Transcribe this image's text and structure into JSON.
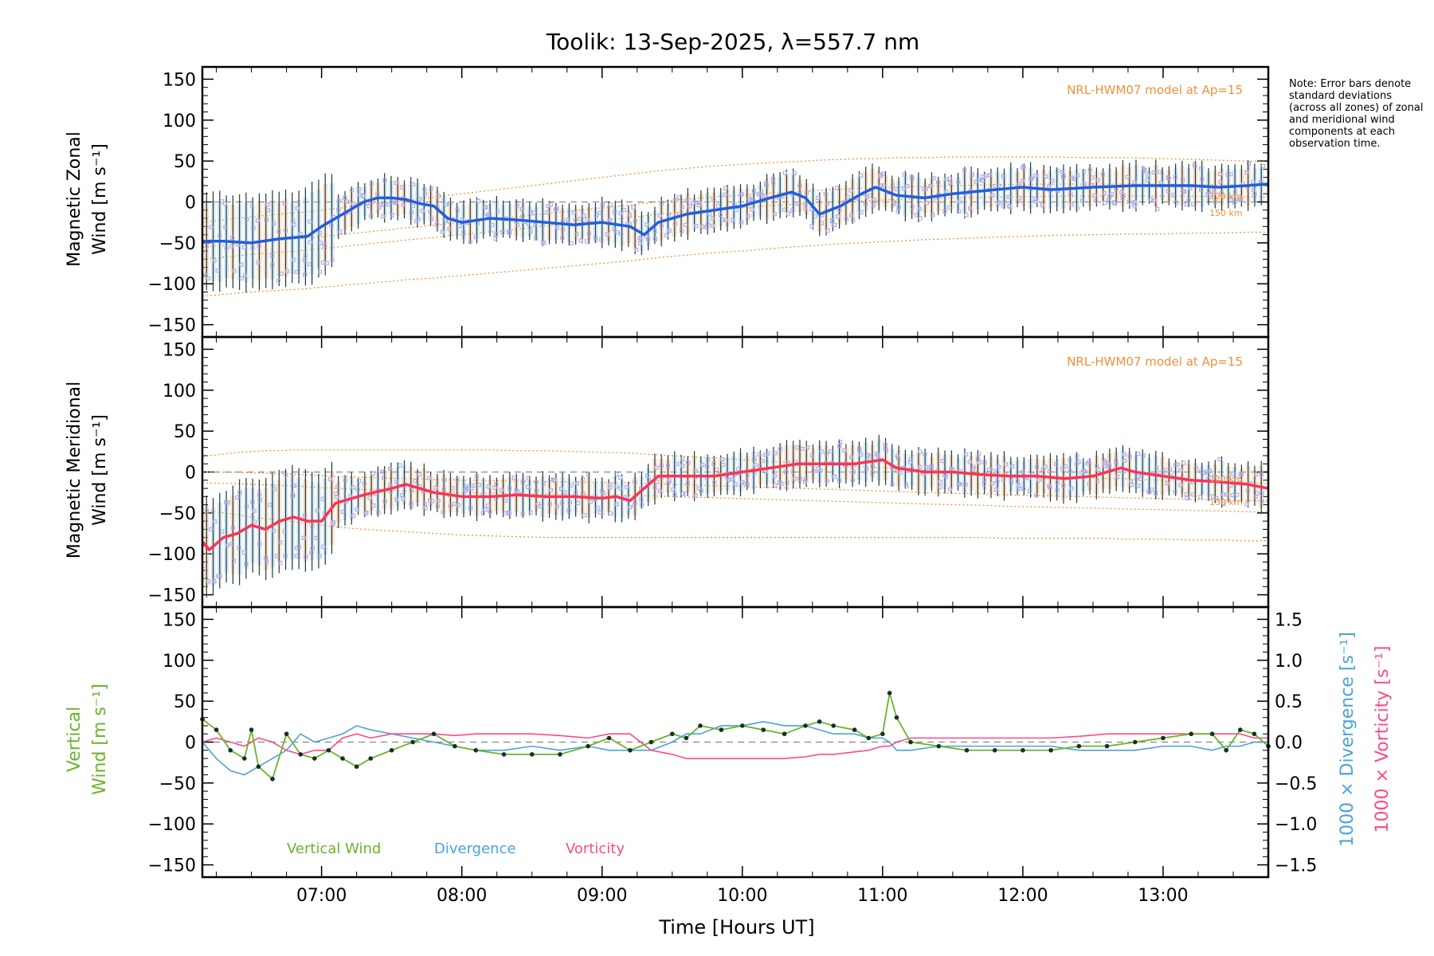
{
  "title": "Toolik: 13-Sep-2025, λ=557.7 nm",
  "note": "Note: Error bars denote standard deviations (across all zones) of zonal and meridional wind components at each observation time.",
  "colors": {
    "axes": "#000000",
    "zonal": "#1f5fe0",
    "meridional": "#ff3355",
    "vertical": "#6ab42a",
    "divergence": "#4aa3d8",
    "vorticity": "#ff4a86",
    "model": "#f0913a",
    "errorbar": "#1e3a32",
    "zone_marker": "#a9a6e3",
    "shade_tan": "#f4c9a8",
    "shade_blue": "#b9d9f0"
  },
  "xlabel": "Time [Hours UT]",
  "xlim": [
    6.15,
    13.75
  ],
  "xticks": [
    {
      "value": 7,
      "label": "07:00"
    },
    {
      "value": 8,
      "label": "08:00"
    },
    {
      "value": 9,
      "label": "09:00"
    },
    {
      "value": 10,
      "label": "10:00"
    },
    {
      "value": 11,
      "label": "11:00"
    },
    {
      "value": 12,
      "label": "12:00"
    },
    {
      "value": 13,
      "label": "13:00"
    }
  ],
  "yticks": [
    150,
    100,
    50,
    0,
    -50,
    -100,
    -150
  ],
  "yticks_right": [
    {
      "value": 1.5,
      "label": "1.5"
    },
    {
      "value": 1.0,
      "label": "1.0"
    },
    {
      "value": 0.5,
      "label": "0.5"
    },
    {
      "value": 0.0,
      "label": "0.0"
    },
    {
      "value": -0.5,
      "label": "−0.5"
    },
    {
      "value": -1.0,
      "label": "−1.0"
    },
    {
      "value": -1.5,
      "label": "−1.5"
    }
  ],
  "panels": {
    "zonal": {
      "ylabel_line1": "Magnetic Zonal",
      "ylabel_line2": "Wind [m s⁻¹]",
      "model_label": "NRL-HWM07 model at Ap=15",
      "alt_label_1": "120 km",
      "alt_label_2": "150 km"
    },
    "meridional": {
      "ylabel_line1": "Magnetic Meridional",
      "ylabel_line2": "Wind [m s⁻¹]",
      "model_label": "NRL-HWM07 model at Ap=15",
      "alt_label_1": "120 km",
      "alt_label_2": "130 km"
    },
    "vertical": {
      "ylabel_line1": "Vertical",
      "ylabel_line2": "Wind [m s⁻¹]",
      "ylabel_right_div": "1000 × Divergence [s⁻¹]",
      "ylabel_right_vort": "1000 × Vorticity [s⁻¹]",
      "legend": [
        "Vertical Wind",
        "Divergence",
        "Vorticity"
      ]
    }
  },
  "chart_data": [
    {
      "type": "line",
      "panel": "zonal",
      "ylim": [
        -165,
        165
      ],
      "x": [
        6.15,
        6.3,
        6.5,
        6.7,
        6.9,
        7.0,
        7.1,
        7.2,
        7.3,
        7.4,
        7.5,
        7.6,
        7.7,
        7.8,
        7.9,
        8.0,
        8.2,
        8.4,
        8.6,
        8.8,
        9.0,
        9.2,
        9.3,
        9.4,
        9.6,
        9.8,
        10.0,
        10.2,
        10.35,
        10.45,
        10.55,
        10.7,
        10.85,
        10.95,
        11.1,
        11.3,
        11.5,
        11.8,
        12.0,
        12.2,
        12.5,
        12.8,
        13.0,
        13.2,
        13.4,
        13.6,
        13.75
      ],
      "series": [
        {
          "name": "Zonal wind",
          "values": [
            -48,
            -48,
            -50,
            -45,
            -42,
            -30,
            -20,
            -10,
            0,
            5,
            5,
            3,
            -2,
            -5,
            -20,
            -25,
            -20,
            -22,
            -25,
            -28,
            -25,
            -30,
            -40,
            -25,
            -15,
            -10,
            -5,
            5,
            12,
            5,
            -15,
            -5,
            10,
            18,
            8,
            5,
            10,
            15,
            18,
            15,
            18,
            20,
            20,
            20,
            18,
            20,
            22
          ]
        },
        {
          "name": "Model upper",
          "values": [
            -25,
            -22,
            -18,
            -15,
            -12,
            -10,
            -8,
            -6,
            -4,
            -2,
            0,
            2,
            4,
            6,
            8,
            10,
            14,
            18,
            22,
            26,
            30,
            34,
            36,
            38,
            41,
            44,
            46,
            48,
            49,
            50,
            51,
            52,
            53,
            53,
            54,
            54,
            55,
            55,
            55,
            55,
            54,
            54,
            53,
            52,
            51,
            50,
            49
          ]
        },
        {
          "name": "Model lower",
          "values": [
            -115,
            -113,
            -110,
            -108,
            -106,
            -104,
            -103,
            -101,
            -100,
            -98,
            -97,
            -95,
            -94,
            -93,
            -91,
            -90,
            -87,
            -84,
            -81,
            -78,
            -75,
            -72,
            -70,
            -68,
            -65,
            -62,
            -60,
            -57,
            -55,
            -54,
            -53,
            -51,
            -50,
            -49,
            -48,
            -46,
            -45,
            -43,
            -42,
            -41,
            -40,
            -39,
            -39,
            -38,
            -38,
            -37,
            -37
          ]
        }
      ]
    },
    {
      "type": "line",
      "panel": "meridional",
      "ylim": [
        -165,
        165
      ],
      "x": [
        6.15,
        6.2,
        6.3,
        6.4,
        6.5,
        6.6,
        6.7,
        6.8,
        6.9,
        7.0,
        7.1,
        7.3,
        7.5,
        7.6,
        7.8,
        8.0,
        8.2,
        8.4,
        8.6,
        8.8,
        9.0,
        9.1,
        9.2,
        9.3,
        9.4,
        9.6,
        9.8,
        10.0,
        10.2,
        10.4,
        10.6,
        10.8,
        11.0,
        11.1,
        11.3,
        11.5,
        11.7,
        11.9,
        12.1,
        12.3,
        12.5,
        12.6,
        12.7,
        12.8,
        13.0,
        13.2,
        13.4,
        13.6,
        13.75
      ],
      "series": [
        {
          "name": "Meridional wind",
          "values": [
            -85,
            -95,
            -80,
            -75,
            -65,
            -70,
            -60,
            -55,
            -60,
            -60,
            -38,
            -28,
            -20,
            -15,
            -25,
            -30,
            -30,
            -28,
            -30,
            -30,
            -32,
            -30,
            -35,
            -20,
            -5,
            -5,
            -5,
            0,
            5,
            10,
            10,
            10,
            15,
            5,
            0,
            0,
            -3,
            -5,
            -5,
            -8,
            -5,
            0,
            5,
            0,
            -5,
            -10,
            -12,
            -15,
            -20
          ]
        },
        {
          "name": "Model upper",
          "values": [
            18,
            20,
            22,
            24,
            25,
            26,
            26,
            27,
            27,
            27,
            27,
            27,
            27,
            27,
            27,
            27,
            27,
            26,
            26,
            25,
            24,
            24,
            23,
            22,
            21,
            19,
            17,
            15,
            13,
            11,
            9,
            7,
            5,
            4,
            2,
            0,
            -1,
            -3,
            -4,
            -6,
            -7,
            -8,
            -8,
            -9,
            -10,
            -11,
            -12,
            -13,
            -14
          ]
        },
        {
          "name": "Model lower",
          "values": [
            -45,
            -47,
            -50,
            -52,
            -55,
            -57,
            -59,
            -61,
            -63,
            -65,
            -67,
            -70,
            -72,
            -73,
            -75,
            -77,
            -78,
            -79,
            -80,
            -80,
            -80,
            -80,
            -80,
            -80,
            -80,
            -80,
            -80,
            -80,
            -80,
            -80,
            -80,
            -80,
            -80,
            -80,
            -80,
            -80,
            -80,
            -81,
            -81,
            -81,
            -81,
            -81,
            -82,
            -82,
            -82,
            -83,
            -83,
            -84,
            -84
          ]
        }
      ]
    },
    {
      "type": "line",
      "panel": "vertical",
      "ylim": [
        -165,
        165
      ],
      "ylim_right": [
        -1.65,
        1.65
      ],
      "x": [
        6.15,
        6.25,
        6.35,
        6.45,
        6.5,
        6.55,
        6.65,
        6.75,
        6.85,
        6.95,
        7.05,
        7.15,
        7.25,
        7.35,
        7.5,
        7.65,
        7.8,
        7.95,
        8.1,
        8.3,
        8.5,
        8.7,
        8.9,
        9.05,
        9.2,
        9.35,
        9.5,
        9.6,
        9.7,
        9.85,
        10.0,
        10.15,
        10.3,
        10.45,
        10.55,
        10.65,
        10.8,
        10.9,
        11.0,
        11.05,
        11.1,
        11.2,
        11.4,
        11.6,
        11.8,
        12.0,
        12.2,
        12.4,
        12.6,
        12.8,
        13.0,
        13.2,
        13.35,
        13.45,
        13.55,
        13.65,
        13.75
      ],
      "series": [
        {
          "name": "Vertical Wind",
          "axis": "left",
          "values": [
            28,
            15,
            -10,
            -20,
            15,
            -30,
            -45,
            10,
            -15,
            -20,
            -10,
            -20,
            -30,
            -20,
            -10,
            0,
            10,
            -5,
            -10,
            -15,
            -15,
            -15,
            -5,
            5,
            -10,
            0,
            10,
            5,
            20,
            15,
            20,
            15,
            10,
            20,
            25,
            20,
            15,
            5,
            10,
            60,
            30,
            0,
            -5,
            -10,
            -10,
            -10,
            -10,
            -5,
            -5,
            0,
            5,
            10,
            10,
            -10,
            15,
            10,
            -5
          ]
        },
        {
          "name": "Divergence",
          "axis": "right",
          "values": [
            0.0,
            -0.2,
            -0.35,
            -0.4,
            -0.35,
            -0.3,
            -0.2,
            -0.1,
            0.1,
            0.0,
            0.05,
            0.1,
            0.2,
            0.15,
            0.1,
            0.05,
            0.0,
            -0.05,
            -0.1,
            -0.1,
            -0.05,
            -0.1,
            -0.05,
            -0.1,
            -0.1,
            -0.1,
            0.0,
            0.1,
            0.1,
            0.2,
            0.2,
            0.25,
            0.2,
            0.2,
            0.15,
            0.1,
            0.1,
            0.05,
            0.05,
            0.0,
            -0.1,
            -0.1,
            -0.05,
            -0.05,
            -0.05,
            -0.05,
            -0.05,
            -0.1,
            -0.1,
            -0.1,
            -0.05,
            -0.05,
            -0.1,
            -0.05,
            -0.05,
            0.0,
            0.0
          ]
        },
        {
          "name": "Vorticity",
          "axis": "right",
          "values": [
            0.0,
            0.05,
            0.0,
            -0.05,
            0.0,
            0.05,
            0.0,
            -0.1,
            -0.15,
            -0.1,
            -0.1,
            0.05,
            0.1,
            0.05,
            0.1,
            0.1,
            0.1,
            0.08,
            0.1,
            0.1,
            0.1,
            0.08,
            0.05,
            0.1,
            0.1,
            -0.1,
            -0.15,
            -0.2,
            -0.2,
            -0.2,
            -0.2,
            -0.2,
            -0.2,
            -0.18,
            -0.15,
            -0.15,
            -0.12,
            -0.1,
            -0.05,
            -0.05,
            0.0,
            0.05,
            0.05,
            0.05,
            0.05,
            0.05,
            0.05,
            0.07,
            0.1,
            0.1,
            0.1,
            0.1,
            0.1,
            0.1,
            0.1,
            0.05,
            0.05
          ]
        }
      ]
    }
  ]
}
